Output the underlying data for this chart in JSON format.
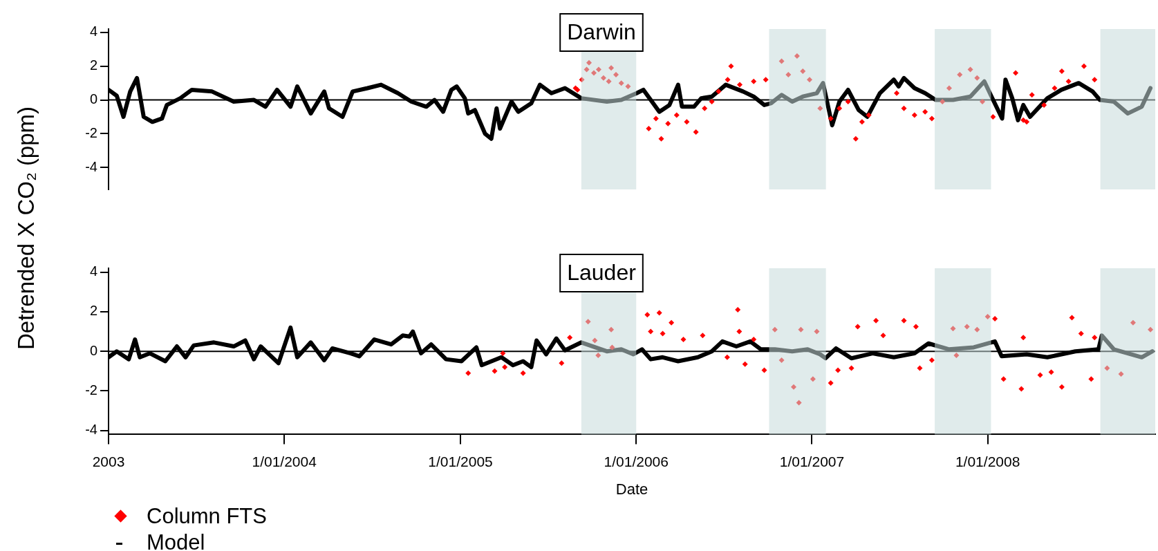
{
  "chart_data": [
    {
      "type": "line",
      "title": "Darwin",
      "ylabel": "Detrended X CO₂ (ppm)",
      "tick_labels": "y",
      "grid": false,
      "legend": false,
      "xlim": [
        "2003-01-01",
        "2008-12-14"
      ],
      "ylim": [
        -5.3,
        4.2
      ],
      "yticks": [
        -4,
        -2,
        0,
        2,
        4
      ],
      "ref_lines": [
        {
          "axis": "y",
          "value": 0,
          "color": "#000000"
        }
      ],
      "bands": [
        {
          "axis": "x",
          "from": "2005-09-09",
          "to": "2006-01-01",
          "color": "#c6dada"
        },
        {
          "axis": "x",
          "from": "2006-10-04",
          "to": "2007-01-30",
          "color": "#c6dada"
        },
        {
          "axis": "x",
          "from": "2007-09-13",
          "to": "2008-01-08",
          "color": "#c6dada"
        },
        {
          "axis": "x",
          "from": "2008-08-22",
          "to": "2008-12-14",
          "color": "#c6dada"
        }
      ],
      "series": [
        {
          "type": "scatter",
          "color": "#ff0000",
          "marker": "diamond",
          "x": [
            "2005-08-28",
            "2005-09-01",
            "2005-09-10",
            "2005-09-20",
            "2005-09-25",
            "2005-10-05",
            "2005-10-15",
            "2005-10-25",
            "2005-11-05",
            "2005-11-10",
            "2005-11-20",
            "2005-12-01",
            "2005-12-15",
            "2006-01-27",
            "2006-02-11",
            "2006-02-22",
            "2006-03-08",
            "2006-03-26",
            "2006-04-16",
            "2006-05-05",
            "2006-05-23",
            "2006-06-07",
            "2006-06-21",
            "2006-07-10",
            "2006-07-17",
            "2006-08-04",
            "2006-09-02",
            "2006-09-27",
            "2006-10-30",
            "2006-11-13",
            "2006-12-01",
            "2006-12-13",
            "2006-12-27",
            "2007-01-18",
            "2007-02-09",
            "2007-02-27",
            "2007-03-17",
            "2007-04-02",
            "2007-04-15",
            "2007-04-29",
            "2007-06-26",
            "2007-07-11",
            "2007-08-02",
            "2007-08-24",
            "2007-09-07",
            "2007-09-29",
            "2007-10-13",
            "2007-11-04",
            "2007-11-26",
            "2007-12-10",
            "2007-12-21",
            "2008-01-12",
            "2008-02-28",
            "2008-03-15",
            "2008-03-22",
            "2008-04-02",
            "2008-04-27",
            "2008-05-19",
            "2008-06-03",
            "2008-06-17",
            "2008-07-19",
            "2008-08-10"
          ],
          "values": [
            0.7,
            0.6,
            1.2,
            1.8,
            2.2,
            1.6,
            1.8,
            1.3,
            1.1,
            1.9,
            1.5,
            1.0,
            0.8,
            -1.7,
            -1.1,
            -2.3,
            -1.4,
            -0.9,
            -1.3,
            -1.9,
            -0.5,
            -0.1,
            0.5,
            1.2,
            2.0,
            0.9,
            1.1,
            1.2,
            2.3,
            1.5,
            2.6,
            1.7,
            1.2,
            -0.5,
            -1.1,
            -0.5,
            -0.1,
            -2.3,
            -1.3,
            -0.9,
            0.4,
            -0.5,
            -0.9,
            -0.7,
            -1.1,
            -0.1,
            0.7,
            1.5,
            1.8,
            1.3,
            -0.1,
            -1.0,
            1.6,
            -1.2,
            -1.3,
            0.3,
            -0.3,
            0.7,
            1.7,
            1.1,
            2.0,
            1.2
          ]
        },
        {
          "type": "line",
          "color": "#000000",
          "marker": "none",
          "x": [
            "2003-01-01",
            "2003-01-18",
            "2003-02-01",
            "2003-02-15",
            "2003-03-01",
            "2003-03-15",
            "2003-04-02",
            "2003-04-22",
            "2003-05-02",
            "2003-05-30",
            "2003-06-23",
            "2003-08-04",
            "2003-09-18",
            "2003-10-30",
            "2003-11-23",
            "2003-12-17",
            "2004-01-14",
            "2004-01-28",
            "2004-02-25",
            "2004-03-24",
            "2004-04-03",
            "2004-05-01",
            "2004-05-22",
            "2004-06-22",
            "2004-07-20",
            "2004-08-24",
            "2004-09-21",
            "2004-10-22",
            "2004-11-08",
            "2004-11-26",
            "2004-12-13",
            "2004-12-24",
            "2005-01-10",
            "2005-01-17",
            "2005-01-31",
            "2005-02-21",
            "2005-03-06",
            "2005-03-17",
            "2005-03-24",
            "2005-04-17",
            "2005-05-01",
            "2005-05-28",
            "2005-06-15",
            "2005-07-09",
            "2005-08-06",
            "2005-09-09",
            "2005-11-01",
            "2005-12-01",
            "2006-01-02",
            "2006-01-16",
            "2006-02-18",
            "2006-03-11",
            "2006-03-29",
            "2006-04-06",
            "2006-05-01",
            "2006-05-16",
            "2006-06-07",
            "2006-07-06",
            "2006-08-11",
            "2006-09-02",
            "2006-09-24",
            "2006-10-08",
            "2006-10-30",
            "2006-11-21",
            "2006-12-13",
            "2007-01-11",
            "2007-01-24",
            "2007-02-12",
            "2007-02-27",
            "2007-03-17",
            "2007-04-08",
            "2007-04-26",
            "2007-05-22",
            "2007-06-20",
            "2007-06-30",
            "2007-07-11",
            "2007-08-02",
            "2007-08-24",
            "2007-09-15",
            "2007-10-21",
            "2007-11-26",
            "2007-12-25",
            "2008-01-09",
            "2008-01-31",
            "2008-02-07",
            "2008-02-21",
            "2008-03-04",
            "2008-03-15",
            "2008-03-29",
            "2008-05-04",
            "2008-06-02",
            "2008-07-08",
            "2008-08-06",
            "2008-08-21",
            "2008-09-19",
            "2008-10-18",
            "2008-11-16",
            "2008-12-04"
          ],
          "values": [
            0.6,
            0.25,
            -1.0,
            0.5,
            1.3,
            -1.0,
            -1.3,
            -1.1,
            -0.3,
            0.1,
            0.6,
            0.5,
            -0.1,
            0.0,
            -0.4,
            0.6,
            -0.4,
            0.8,
            -0.8,
            0.5,
            -0.5,
            -1.0,
            0.5,
            0.7,
            0.9,
            0.4,
            -0.1,
            -0.4,
            0.0,
            -0.7,
            0.6,
            0.8,
            0.1,
            -0.8,
            -0.6,
            -2.0,
            -2.3,
            -0.5,
            -1.7,
            -0.1,
            -0.7,
            -0.2,
            0.9,
            0.4,
            0.7,
            0.1,
            -0.1,
            0.0,
            0.4,
            0.6,
            -0.7,
            -0.3,
            0.9,
            -0.4,
            -0.4,
            0.1,
            0.2,
            0.9,
            0.5,
            0.2,
            -0.3,
            -0.2,
            0.3,
            -0.1,
            0.2,
            0.4,
            1.0,
            -1.5,
            -0.1,
            0.6,
            -0.6,
            -1.0,
            0.4,
            1.2,
            0.8,
            1.3,
            0.7,
            0.4,
            0.0,
            0.0,
            0.2,
            1.1,
            0.2,
            -1.1,
            1.2,
            0.1,
            -1.2,
            -0.3,
            -1.0,
            0.1,
            0.6,
            1.0,
            0.5,
            0.0,
            -0.1,
            -0.8,
            -0.4,
            0.7
          ]
        }
      ]
    },
    {
      "type": "line",
      "title": "Lauder",
      "xlabel": "Date",
      "grid": false,
      "legend": "bottom left",
      "xlim": [
        "2003-01-01",
        "2008-12-14"
      ],
      "ylim": [
        -4.2,
        4.2
      ],
      "yticks": [
        -4,
        -2,
        0,
        2,
        4
      ],
      "xticks": [
        {
          "value": "2003-01-01",
          "label": "2003"
        },
        {
          "value": "2004-01-01",
          "label": "1/01/2004"
        },
        {
          "value": "2005-01-01",
          "label": "1/01/2005"
        },
        {
          "value": "2006-01-01",
          "label": "1/01/2006"
        },
        {
          "value": "2007-01-01",
          "label": "1/01/2007"
        },
        {
          "value": "2008-01-01",
          "label": "1/01/2008"
        }
      ],
      "ref_lines": [
        {
          "axis": "y",
          "value": 0,
          "color": "#000000"
        }
      ],
      "bands": [
        {
          "axis": "x",
          "from": "2005-09-09",
          "to": "2006-01-01",
          "color": "#c6dada"
        },
        {
          "axis": "x",
          "from": "2006-10-04",
          "to": "2007-01-30",
          "color": "#c6dada"
        },
        {
          "axis": "x",
          "from": "2007-09-13",
          "to": "2008-01-08",
          "color": "#c6dada"
        },
        {
          "axis": "x",
          "from": "2008-08-22",
          "to": "2008-12-14",
          "color": "#c6dada"
        }
      ],
      "series": [
        {
          "type": "scatter",
          "name": "Column FTS",
          "color": "#ff0000",
          "marker": "diamond",
          "x": [
            "2005-01-17",
            "2005-03-13",
            "2005-03-30",
            "2005-04-03",
            "2005-05-11",
            "2005-07-30",
            "2005-08-16",
            "2005-09-23",
            "2005-10-07",
            "2005-10-14",
            "2005-11-10",
            "2005-11-12",
            "2006-01-24",
            "2006-01-31",
            "2006-02-18",
            "2006-02-25",
            "2006-03-15",
            "2006-04-09",
            "2006-05-19",
            "2006-07-09",
            "2006-07-31",
            "2006-08-03",
            "2006-08-15",
            "2006-09-02",
            "2006-09-24",
            "2006-10-16",
            "2006-10-30",
            "2006-11-24",
            "2006-12-05",
            "2006-12-09",
            "2007-01-03",
            "2007-01-11",
            "2007-02-09",
            "2007-02-24",
            "2007-03-24",
            "2007-04-06",
            "2007-05-14",
            "2007-05-29",
            "2007-07-11",
            "2007-08-05",
            "2007-08-13",
            "2007-09-07",
            "2007-10-21",
            "2007-10-28",
            "2007-11-19",
            "2007-12-10",
            "2008-01-01",
            "2008-01-16",
            "2008-02-03",
            "2008-03-11",
            "2008-03-15",
            "2008-04-19",
            "2008-05-12",
            "2008-06-03",
            "2008-06-24",
            "2008-07-13",
            "2008-08-03",
            "2008-08-10",
            "2008-09-05",
            "2008-10-04",
            "2008-10-29",
            "2008-12-04"
          ],
          "values": [
            -1.1,
            -1.0,
            -0.1,
            -0.8,
            -1.1,
            -0.6,
            0.7,
            1.5,
            0.55,
            -0.2,
            1.1,
            0.2,
            1.85,
            1.0,
            1.95,
            0.9,
            1.45,
            0.6,
            0.8,
            -0.3,
            2.1,
            1.0,
            -0.65,
            0.6,
            -0.95,
            1.1,
            -0.45,
            -1.8,
            -2.6,
            1.1,
            -1.4,
            1.0,
            -1.6,
            -0.95,
            -0.85,
            1.25,
            1.55,
            0.8,
            1.55,
            1.25,
            -0.85,
            -0.45,
            1.15,
            -0.2,
            1.25,
            1.1,
            1.75,
            1.65,
            -1.4,
            -1.9,
            0.7,
            -1.2,
            -1.05,
            -1.8,
            1.7,
            0.9,
            -1.4,
            0.7,
            -0.85,
            -1.15,
            1.45,
            1.1
          ]
        },
        {
          "type": "line",
          "name": "Model",
          "color": "#000000",
          "marker": "none",
          "x": [
            "2003-01-01",
            "2003-01-18",
            "2003-02-12",
            "2003-02-25",
            "2003-03-07",
            "2003-03-28",
            "2003-04-29",
            "2003-05-23",
            "2003-06-10",
            "2003-06-27",
            "2003-08-08",
            "2003-09-18",
            "2003-10-12",
            "2003-10-30",
            "2003-11-13",
            "2003-12-20",
            "2004-01-14",
            "2004-01-28",
            "2004-02-25",
            "2004-03-24",
            "2004-04-10",
            "2004-05-18",
            "2004-06-05",
            "2004-07-06",
            "2004-08-10",
            "2004-09-03",
            "2004-09-17",
            "2004-09-24",
            "2004-10-11",
            "2004-11-01",
            "2004-12-02",
            "2005-01-03",
            "2005-02-03",
            "2005-02-14",
            "2005-03-27",
            "2005-04-20",
            "2005-05-11",
            "2005-05-28",
            "2005-06-08",
            "2005-06-28",
            "2005-07-19",
            "2005-08-06",
            "2005-09-09",
            "2005-11-01",
            "2005-12-01",
            "2005-12-26",
            "2006-01-13",
            "2006-01-31",
            "2006-02-25",
            "2006-03-29",
            "2006-05-09",
            "2006-06-07",
            "2006-06-29",
            "2006-07-28",
            "2006-08-26",
            "2006-09-17",
            "2006-10-16",
            "2006-11-21",
            "2006-12-23",
            "2007-01-18",
            "2007-01-29",
            "2007-02-20",
            "2007-03-24",
            "2007-05-07",
            "2007-06-20",
            "2007-08-02",
            "2007-08-31",
            "2007-10-13",
            "2007-12-03",
            "2008-01-16",
            "2008-01-30",
            "2008-03-22",
            "2008-05-04",
            "2008-07-01",
            "2008-08-18",
            "2008-08-25",
            "2008-09-19",
            "2008-11-16",
            "2008-12-08"
          ],
          "values": [
            -0.3,
            0.0,
            -0.4,
            0.6,
            -0.3,
            -0.1,
            -0.5,
            0.25,
            -0.3,
            0.3,
            0.45,
            0.25,
            0.55,
            -0.4,
            0.25,
            -0.6,
            1.2,
            -0.3,
            0.45,
            -0.45,
            0.15,
            -0.1,
            -0.25,
            0.6,
            0.35,
            0.8,
            0.75,
            1.0,
            -0.1,
            0.35,
            -0.4,
            -0.5,
            0.2,
            -0.7,
            -0.3,
            -0.7,
            -0.5,
            -0.8,
            0.55,
            -0.15,
            0.65,
            0.05,
            0.45,
            0.0,
            0.1,
            -0.15,
            0.1,
            -0.4,
            -0.3,
            -0.5,
            -0.3,
            0.0,
            0.5,
            0.25,
            0.5,
            0.1,
            0.1,
            0.0,
            0.1,
            -0.15,
            -0.35,
            0.15,
            -0.35,
            -0.1,
            -0.3,
            -0.1,
            0.4,
            0.1,
            0.2,
            0.5,
            -0.25,
            -0.15,
            -0.3,
            0.0,
            0.1,
            0.8,
            0.1,
            -0.3,
            0.0
          ]
        }
      ]
    }
  ]
}
